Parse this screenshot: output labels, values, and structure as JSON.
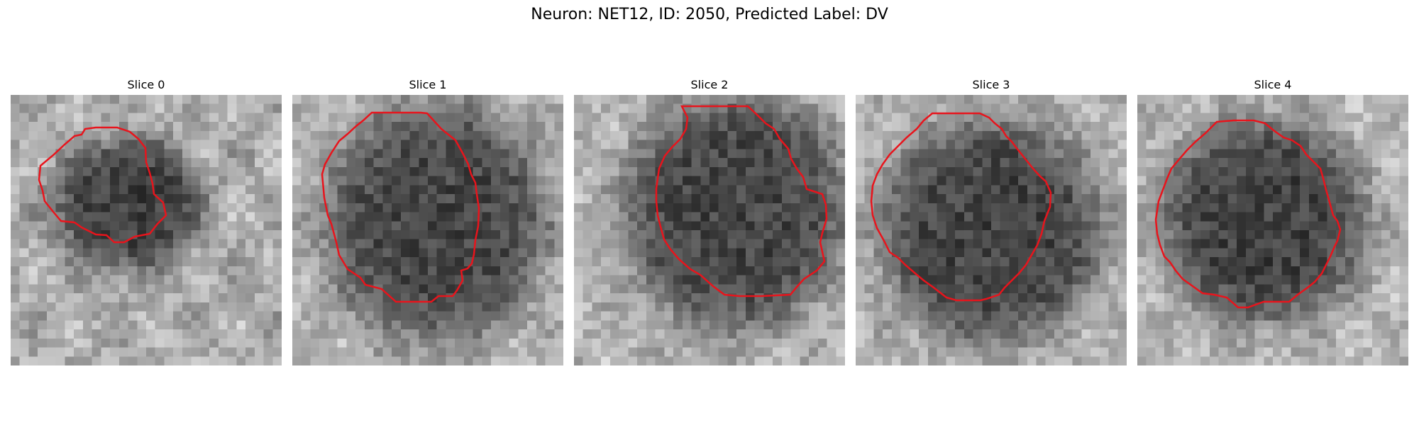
{
  "figure": {
    "title": "Neuron: NET12, ID: 2050, Predicted Label: DV"
  },
  "contour_color": "#e8141c",
  "slices": [
    {
      "title": "Slice 0"
    },
    {
      "title": "Slice 1"
    },
    {
      "title": "Slice 2"
    },
    {
      "title": "Slice 3"
    },
    {
      "title": "Slice 4"
    }
  ]
}
